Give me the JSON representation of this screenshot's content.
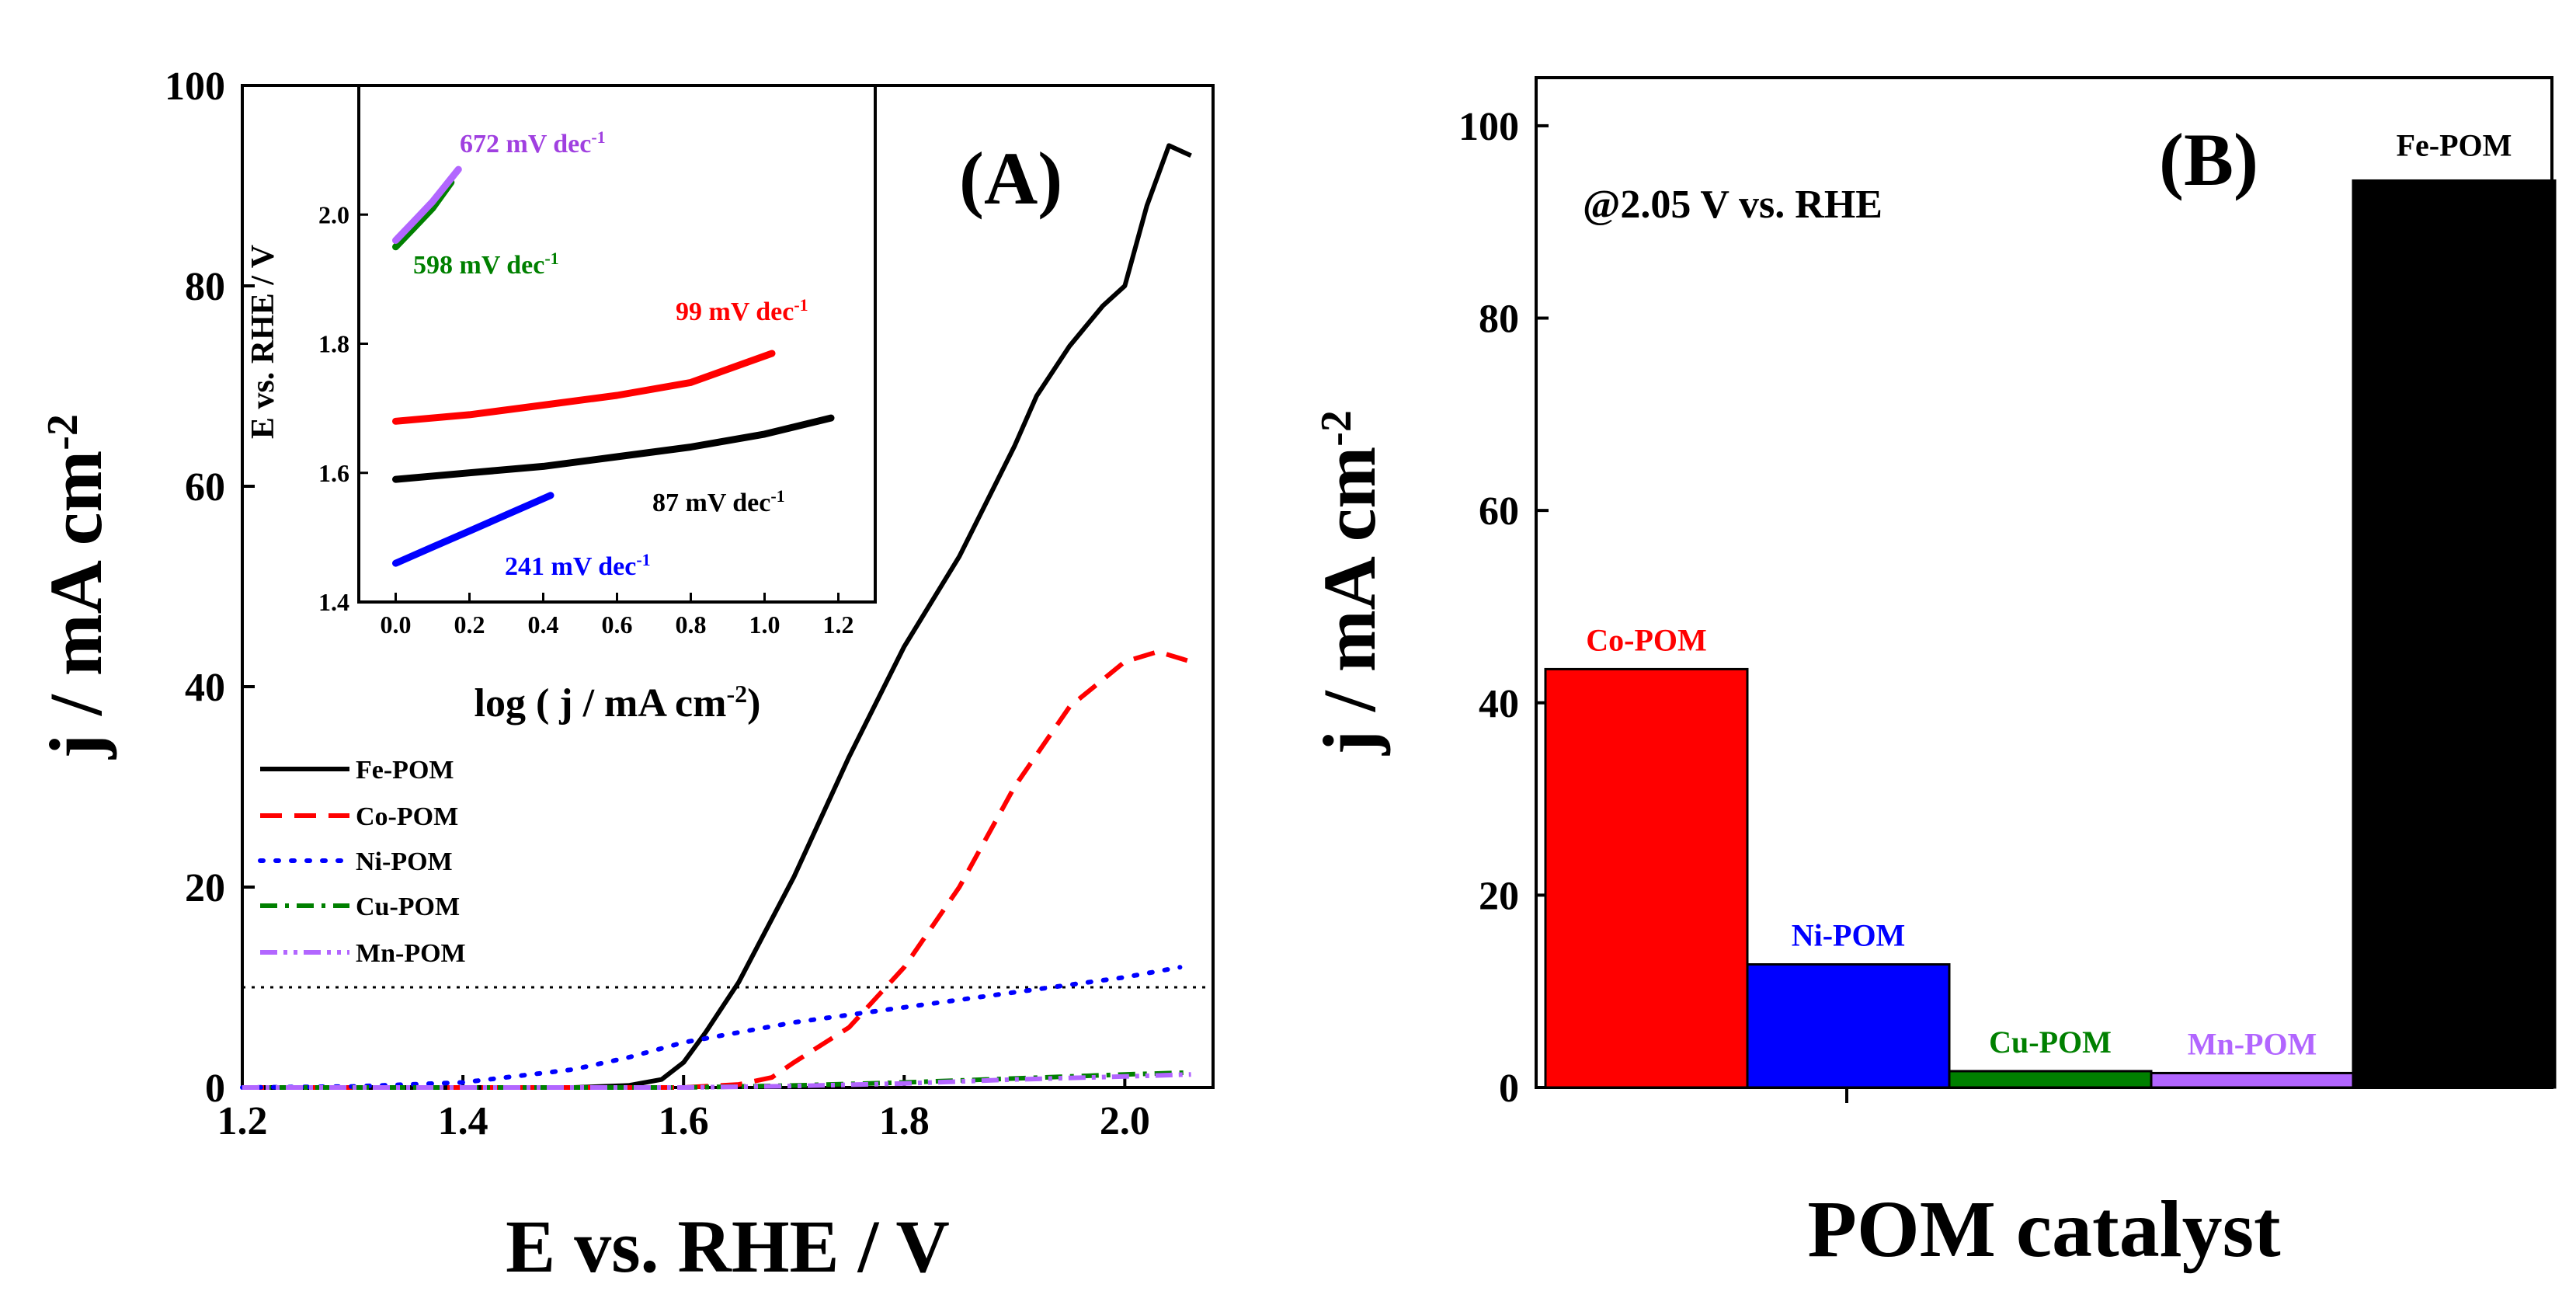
{
  "colors": {
    "Fe-POM": "#000000",
    "Co-POM": "#ff0000",
    "Ni-POM": "#0000ff",
    "Cu-POM": "#008000",
    "Mn-POM": "#b266ff"
  },
  "chart_data": [
    {
      "type": "line",
      "panel_label": "(A)",
      "xlabel": "E vs. RHE / V",
      "ylabel": "j / mA cm",
      "ylabel_sup": "-2",
      "xlim": [
        1.2,
        2.08
      ],
      "ylim": [
        0,
        100
      ],
      "xticks": [
        1.2,
        1.4,
        1.6,
        1.8,
        2.0
      ],
      "yticks": [
        0,
        20,
        40,
        60,
        80,
        100
      ],
      "reference_line_y": 10,
      "legend_position": "lower-left",
      "series": [
        {
          "name": "Fe-POM",
          "style": "solid",
          "x": [
            1.2,
            1.5,
            1.55,
            1.58,
            1.6,
            1.62,
            1.65,
            1.7,
            1.75,
            1.8,
            1.85,
            1.9,
            1.92,
            1.95,
            1.98,
            2.0,
            2.02,
            2.04,
            2.06
          ],
          "y": [
            0,
            0,
            0.2,
            0.8,
            2.5,
            5.5,
            10.5,
            21,
            33,
            44,
            53,
            64,
            69,
            74,
            78,
            80,
            88,
            94,
            93
          ]
        },
        {
          "name": "Co-POM",
          "style": "dashed",
          "x": [
            1.2,
            1.6,
            1.65,
            1.68,
            1.7,
            1.75,
            1.8,
            1.85,
            1.9,
            1.95,
            2.0,
            2.03,
            2.06
          ],
          "y": [
            0,
            0,
            0.3,
            1,
            2.5,
            6,
            12,
            20,
            30,
            38,
            42.5,
            43.5,
            42.5
          ]
        },
        {
          "name": "Ni-POM",
          "style": "dotted",
          "x": [
            1.2,
            1.3,
            1.4,
            1.5,
            1.55,
            1.6,
            1.7,
            1.8,
            1.9,
            2.0,
            2.05
          ],
          "y": [
            0,
            0.1,
            0.5,
            1.8,
            3,
            4.5,
            6.5,
            8,
            9.5,
            11,
            12
          ]
        },
        {
          "name": "Cu-POM",
          "style": "dashdot",
          "x": [
            1.2,
            1.6,
            1.7,
            1.8,
            1.9,
            2.0,
            2.06
          ],
          "y": [
            0,
            0,
            0.2,
            0.5,
            0.9,
            1.3,
            1.5
          ]
        },
        {
          "name": "Mn-POM",
          "style": "dashdotdot",
          "x": [
            1.2,
            1.6,
            1.7,
            1.8,
            1.9,
            2.0,
            2.06
          ],
          "y": [
            0,
            0,
            0.15,
            0.4,
            0.8,
            1.1,
            1.3
          ]
        }
      ]
    },
    {
      "type": "line",
      "role": "inset",
      "xlabel": "log ( j / mA cm",
      "xlabel_sup": "-2",
      "xlabel_end": ")",
      "ylabel": "E vs. RHE / V",
      "xlim": [
        -0.1,
        1.3
      ],
      "ylim": [
        1.4,
        2.2
      ],
      "xticks": [
        0.0,
        0.2,
        0.4,
        0.6,
        0.8,
        1.0,
        1.2
      ],
      "yticks": [
        1.4,
        1.6,
        1.8,
        2.0
      ],
      "series": [
        {
          "name": "Fe-POM",
          "annotation": "87 mV dec",
          "annotation_sup": "-1",
          "x": [
            0,
            0.2,
            0.4,
            0.6,
            0.8,
            1.0,
            1.18
          ],
          "y": [
            1.59,
            1.6,
            1.61,
            1.625,
            1.64,
            1.66,
            1.685
          ]
        },
        {
          "name": "Co-POM",
          "annotation": "99 mV dec",
          "annotation_sup": "-1",
          "x": [
            0,
            0.2,
            0.4,
            0.6,
            0.8,
            1.02
          ],
          "y": [
            1.68,
            1.69,
            1.705,
            1.72,
            1.74,
            1.785
          ]
        },
        {
          "name": "Ni-POM",
          "annotation": "241 mV dec",
          "annotation_sup": "-1",
          "x": [
            0,
            0.1,
            0.2,
            0.3,
            0.42
          ],
          "y": [
            1.46,
            1.485,
            1.51,
            1.535,
            1.565
          ]
        },
        {
          "name": "Cu-POM",
          "annotation": "598 mV dec",
          "annotation_sup": "-1",
          "x": [
            0,
            0.05,
            0.1,
            0.15
          ],
          "y": [
            1.95,
            1.98,
            2.01,
            2.05
          ]
        },
        {
          "name": "Mn-POM",
          "annotation": "672 mV dec",
          "annotation_sup": "-1",
          "x": [
            0,
            0.05,
            0.1,
            0.17
          ],
          "y": [
            1.96,
            1.99,
            2.02,
            2.07
          ]
        }
      ]
    },
    {
      "type": "bar",
      "panel_label": "(B)",
      "annotation": "@2.05 V vs. RHE",
      "xlabel": "POM catalyst",
      "ylabel": "j / mA cm",
      "ylabel_sup": "-2",
      "ylim": [
        0,
        105
      ],
      "yticks": [
        0,
        20,
        40,
        60,
        80,
        100
      ],
      "categories": [
        "Co-POM",
        "Ni-POM",
        "Cu-POM",
        "Mn-POM",
        "Fe-POM"
      ],
      "values": [
        43.5,
        12.8,
        1.7,
        1.5,
        94.3
      ]
    }
  ]
}
